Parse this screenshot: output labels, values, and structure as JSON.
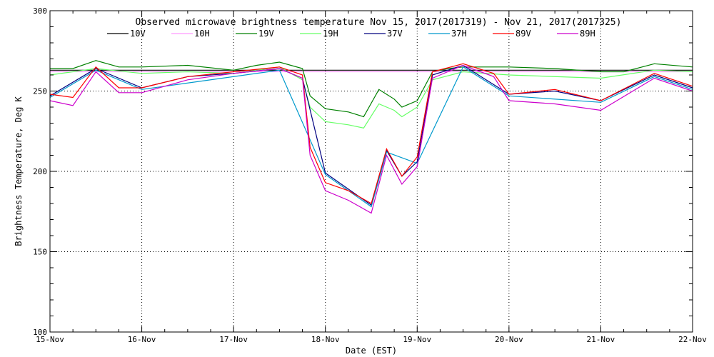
{
  "chart_data": {
    "type": "line",
    "title": "Observed microwave brightness temperature Nov 15, 2017(2017319) - Nov 21, 2017(2017325)",
    "xlabel": "Date (EST)",
    "ylabel": "Brightness Temperature, Deg K",
    "x_tick_labels": [
      "15-Nov",
      "16-Nov",
      "17-Nov",
      "18-Nov",
      "19-Nov",
      "20-Nov",
      "21-Nov",
      "22-Nov"
    ],
    "x_range": [
      "2017-11-15",
      "2017-11-22"
    ],
    "ylim": [
      100,
      300
    ],
    "y_ticks": [
      100,
      150,
      200,
      250,
      300
    ],
    "grid": true,
    "legend_placement": "top",
    "series": [
      {
        "name": "10V",
        "color": "#000000",
        "points": [
          [
            "2017-11-15 00:00",
            263
          ],
          [
            "2017-11-15 12:00",
            263
          ],
          [
            "2017-11-17 12:00",
            263
          ],
          [
            "2017-11-22 00:00",
            263
          ]
        ]
      },
      {
        "name": "10H",
        "color": "#ff99ff",
        "points": [
          [
            "2017-11-15 00:00",
            262
          ],
          [
            "2017-11-22 00:00",
            262
          ]
        ]
      },
      {
        "name": "19V",
        "color": "#008000",
        "points": [
          [
            "2017-11-15 00:00",
            264
          ],
          [
            "2017-11-15 06:00",
            264
          ],
          [
            "2017-11-15 12:00",
            269
          ],
          [
            "2017-11-15 18:00",
            265
          ],
          [
            "2017-11-16 00:00",
            265
          ],
          [
            "2017-11-16 12:00",
            266
          ],
          [
            "2017-11-17 00:00",
            263
          ],
          [
            "2017-11-17 06:00",
            266
          ],
          [
            "2017-11-17 12:00",
            268
          ],
          [
            "2017-11-17 18:00",
            264
          ],
          [
            "2017-11-17 20:00",
            247
          ],
          [
            "2017-11-18 00:00",
            239
          ],
          [
            "2017-11-18 06:00",
            237
          ],
          [
            "2017-11-18 10:00",
            234
          ],
          [
            "2017-11-18 14:00",
            251
          ],
          [
            "2017-11-18 18:00",
            245
          ],
          [
            "2017-11-18 20:00",
            240
          ],
          [
            "2017-11-19 00:00",
            244
          ],
          [
            "2017-11-19 04:00",
            262
          ],
          [
            "2017-11-19 08:00",
            264
          ],
          [
            "2017-11-19 12:00",
            265
          ],
          [
            "2017-11-19 18:00",
            265
          ],
          [
            "2017-11-20 00:00",
            265
          ],
          [
            "2017-11-20 12:00",
            264
          ],
          [
            "2017-11-21 00:00",
            262
          ],
          [
            "2017-11-21 06:00",
            262
          ],
          [
            "2017-11-21 14:00",
            267
          ],
          [
            "2017-11-22 00:00",
            265
          ]
        ]
      },
      {
        "name": "19H",
        "color": "#66ff66",
        "points": [
          [
            "2017-11-15 00:00",
            260
          ],
          [
            "2017-11-15 12:00",
            264
          ],
          [
            "2017-11-16 00:00",
            261
          ],
          [
            "2017-11-16 12:00",
            262
          ],
          [
            "2017-11-17 00:00",
            261
          ],
          [
            "2017-11-17 12:00",
            265
          ],
          [
            "2017-11-17 18:00",
            257
          ],
          [
            "2017-11-17 20:00",
            240
          ],
          [
            "2017-11-18 00:00",
            231
          ],
          [
            "2017-11-18 06:00",
            229
          ],
          [
            "2017-11-18 10:00",
            227
          ],
          [
            "2017-11-18 14:00",
            242
          ],
          [
            "2017-11-18 18:00",
            238
          ],
          [
            "2017-11-18 20:00",
            234
          ],
          [
            "2017-11-19 00:00",
            240
          ],
          [
            "2017-11-19 04:00",
            257
          ],
          [
            "2017-11-19 12:00",
            262
          ],
          [
            "2017-11-20 00:00",
            260
          ],
          [
            "2017-11-21 00:00",
            258
          ],
          [
            "2017-11-21 14:00",
            263
          ],
          [
            "2017-11-22 00:00",
            262
          ]
        ]
      },
      {
        "name": "37V",
        "color": "#000080",
        "points": [
          [
            "2017-11-15 00:00",
            247
          ],
          [
            "2017-11-15 12:00",
            264
          ],
          [
            "2017-11-16 00:00",
            252
          ],
          [
            "2017-11-16 12:00",
            259
          ],
          [
            "2017-11-17 00:00",
            261
          ],
          [
            "2017-11-17 12:00",
            264
          ],
          [
            "2017-11-17 18:00",
            258
          ],
          [
            "2017-11-18 00:00",
            199
          ],
          [
            "2017-11-18 12:00",
            179
          ],
          [
            "2017-11-18 16:00",
            213
          ],
          [
            "2017-11-18 20:00",
            197
          ],
          [
            "2017-11-19 00:00",
            206
          ],
          [
            "2017-11-19 04:00",
            260
          ],
          [
            "2017-11-19 12:00",
            266
          ],
          [
            "2017-11-20 00:00",
            248
          ],
          [
            "2017-11-20 12:00",
            250
          ],
          [
            "2017-11-21 00:00",
            244
          ],
          [
            "2017-11-21 14:00",
            260
          ],
          [
            "2017-11-22 00:00",
            252
          ]
        ]
      },
      {
        "name": "37H",
        "color": "#0099cc",
        "points": [
          [
            "2017-11-15 00:00",
            246
          ],
          [
            "2017-11-15 12:00",
            263
          ],
          [
            "2017-11-16 00:00",
            251
          ],
          [
            "2017-11-17 12:00",
            263
          ],
          [
            "2017-11-18 00:00",
            198
          ],
          [
            "2017-11-18 12:00",
            178
          ],
          [
            "2017-11-18 16:00",
            212
          ],
          [
            "2017-11-19 00:00",
            205
          ],
          [
            "2017-11-19 12:00",
            265
          ],
          [
            "2017-11-20 00:00",
            247
          ],
          [
            "2017-11-21 00:00",
            243
          ],
          [
            "2017-11-21 14:00",
            259
          ],
          [
            "2017-11-22 00:00",
            251
          ]
        ]
      },
      {
        "name": "89V",
        "color": "#ff0000",
        "points": [
          [
            "2017-11-15 00:00",
            248
          ],
          [
            "2017-11-15 06:00",
            246
          ],
          [
            "2017-11-15 12:00",
            265
          ],
          [
            "2017-11-15 18:00",
            252
          ],
          [
            "2017-11-16 00:00",
            252
          ],
          [
            "2017-11-16 12:00",
            259
          ],
          [
            "2017-11-17 00:00",
            262
          ],
          [
            "2017-11-17 12:00",
            265
          ],
          [
            "2017-11-17 18:00",
            260
          ],
          [
            "2017-11-17 20:00",
            215
          ],
          [
            "2017-11-18 00:00",
            193
          ],
          [
            "2017-11-18 06:00",
            188
          ],
          [
            "2017-11-18 12:00",
            180
          ],
          [
            "2017-11-18 16:00",
            214
          ],
          [
            "2017-11-18 20:00",
            197
          ],
          [
            "2017-11-19 00:00",
            209
          ],
          [
            "2017-11-19 04:00",
            262
          ],
          [
            "2017-11-19 12:00",
            267
          ],
          [
            "2017-11-19 20:00",
            261
          ],
          [
            "2017-11-20 00:00",
            248
          ],
          [
            "2017-11-20 12:00",
            251
          ],
          [
            "2017-11-21 00:00",
            244
          ],
          [
            "2017-11-21 14:00",
            261
          ],
          [
            "2017-11-22 00:00",
            253
          ]
        ]
      },
      {
        "name": "89H",
        "color": "#cc00cc",
        "points": [
          [
            "2017-11-15 00:00",
            244
          ],
          [
            "2017-11-15 06:00",
            241
          ],
          [
            "2017-11-15 12:00",
            262
          ],
          [
            "2017-11-15 18:00",
            249
          ],
          [
            "2017-11-16 00:00",
            249
          ],
          [
            "2017-11-16 12:00",
            257
          ],
          [
            "2017-11-17 00:00",
            261
          ],
          [
            "2017-11-17 12:00",
            264
          ],
          [
            "2017-11-17 18:00",
            258
          ],
          [
            "2017-11-17 20:00",
            210
          ],
          [
            "2017-11-18 00:00",
            188
          ],
          [
            "2017-11-18 06:00",
            182
          ],
          [
            "2017-11-18 12:00",
            174
          ],
          [
            "2017-11-18 16:00",
            210
          ],
          [
            "2017-11-18 20:00",
            192
          ],
          [
            "2017-11-19 00:00",
            203
          ],
          [
            "2017-11-19 04:00",
            258
          ],
          [
            "2017-11-19 12:00",
            266
          ],
          [
            "2017-11-19 20:00",
            259
          ],
          [
            "2017-11-20 00:00",
            244
          ],
          [
            "2017-11-20 12:00",
            242
          ],
          [
            "2017-11-21 00:00",
            238
          ],
          [
            "2017-11-21 14:00",
            258
          ],
          [
            "2017-11-22 00:00",
            250
          ]
        ]
      }
    ]
  }
}
